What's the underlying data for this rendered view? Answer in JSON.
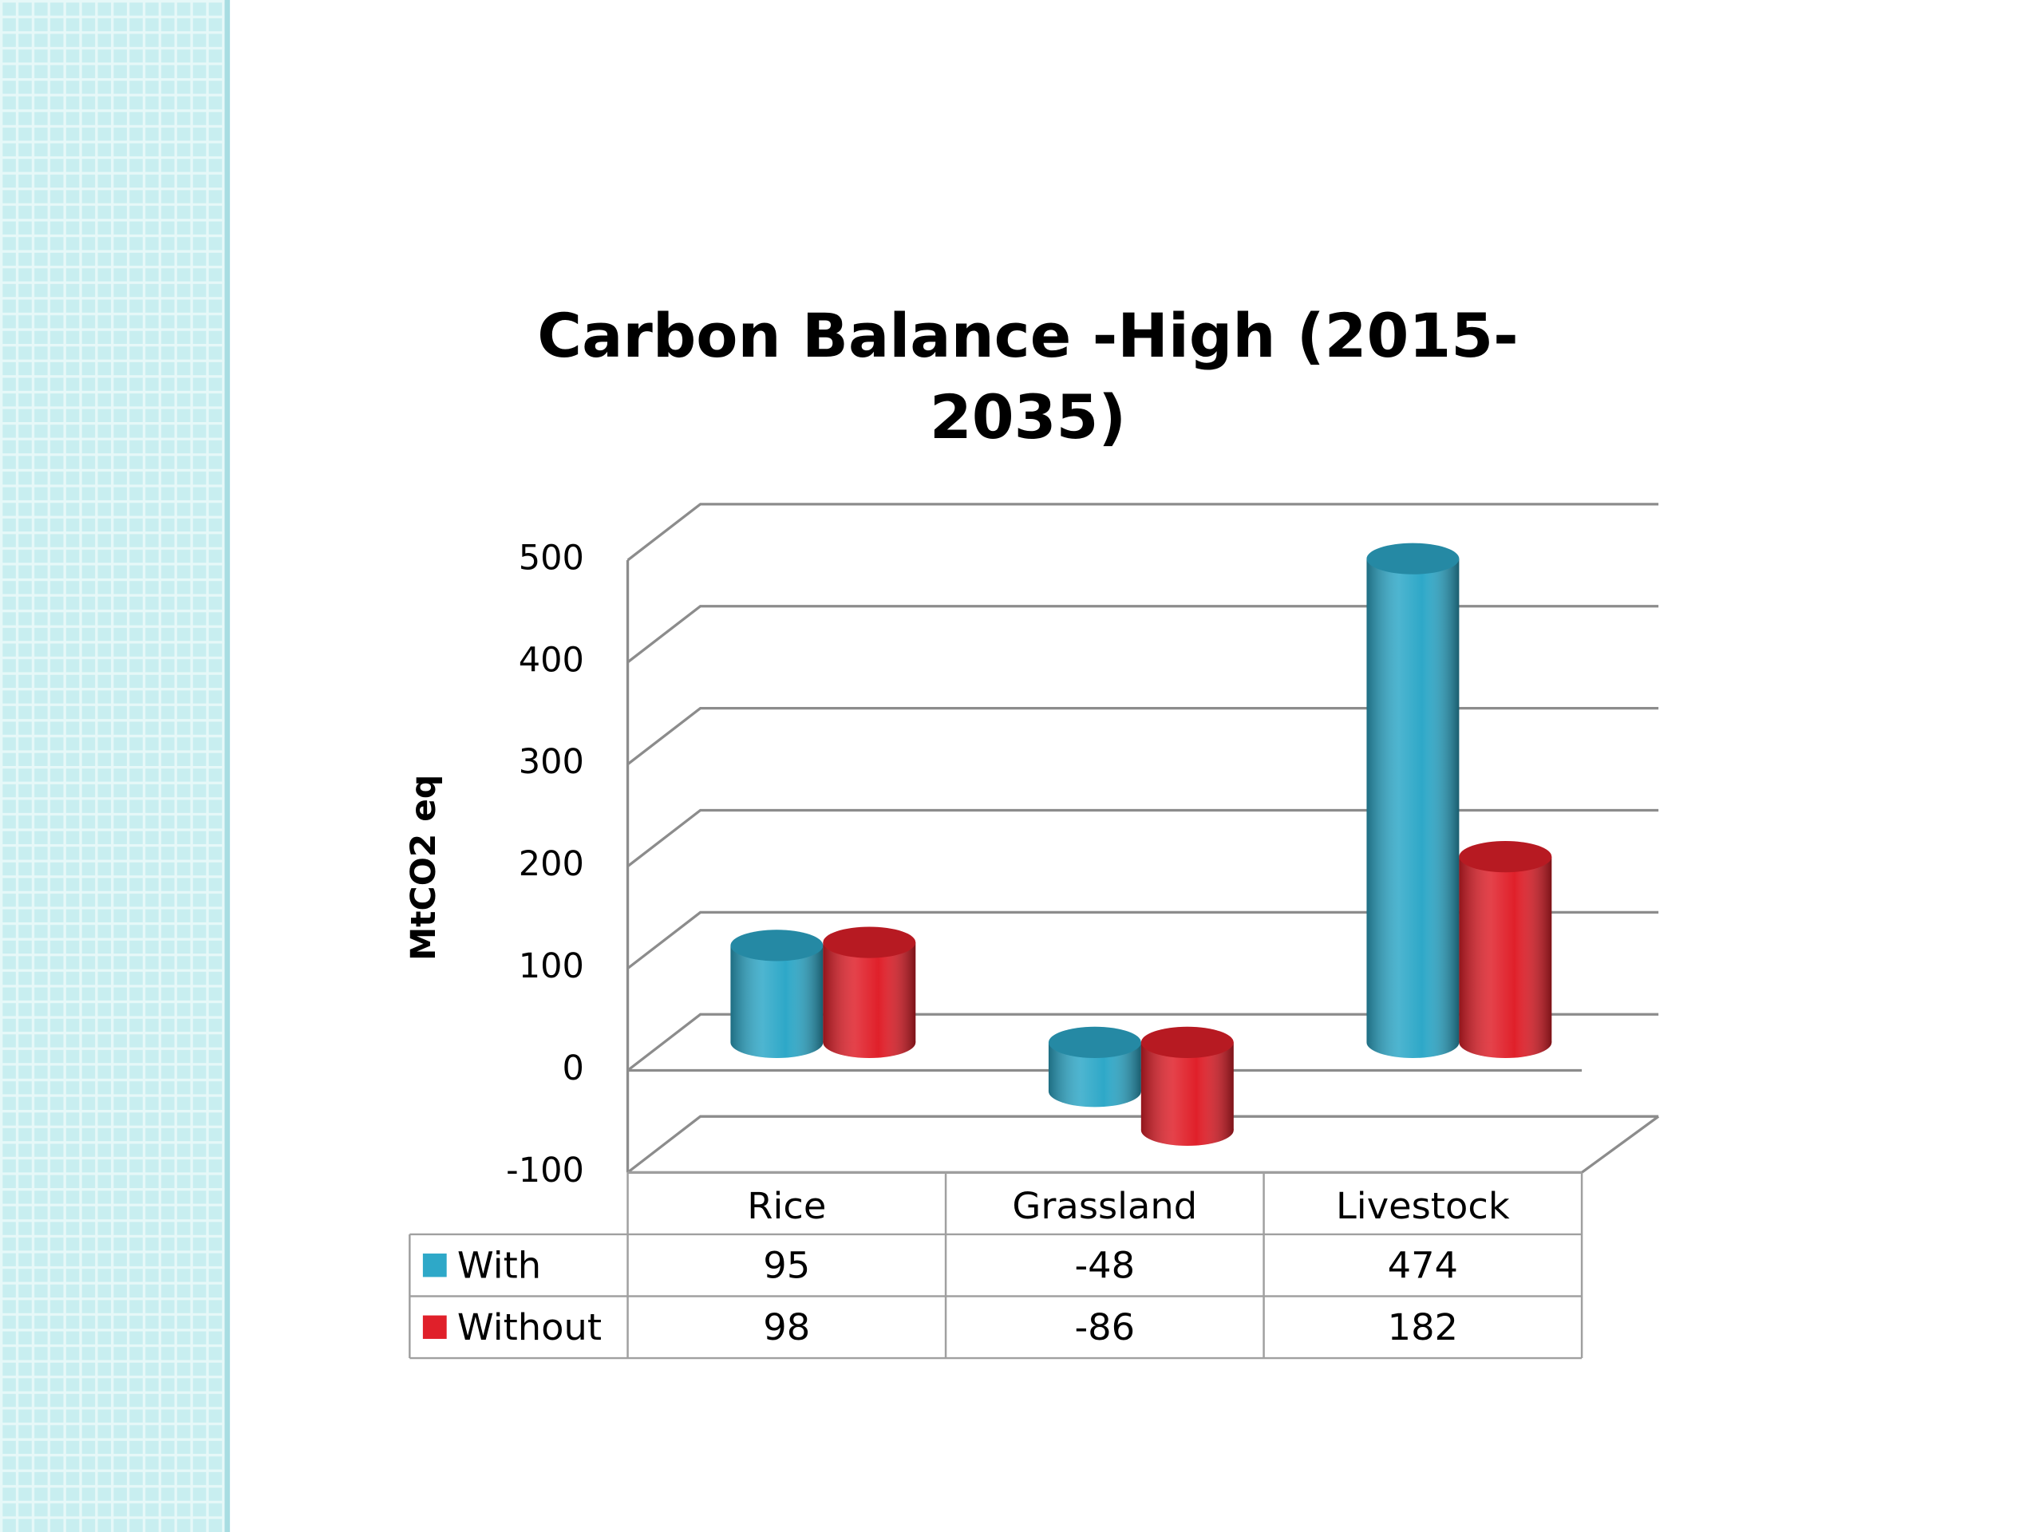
{
  "chart_data": {
    "type": "bar3d",
    "title": "Carbon Balance -High (2015-2035)",
    "ylabel": "MtCO2 eq",
    "categories": [
      "Rice",
      "Grassland",
      "Livestock"
    ],
    "series": [
      {
        "name": "With",
        "color": "#2ea8c8",
        "values": [
          95,
          -48,
          474
        ]
      },
      {
        "name": "Without",
        "color": "#e0202a",
        "values": [
          98,
          -86,
          182
        ]
      }
    ],
    "ylim": [
      -100,
      500
    ],
    "yticks": [
      -100,
      0,
      100,
      200,
      300,
      400,
      500
    ],
    "grid": true
  }
}
